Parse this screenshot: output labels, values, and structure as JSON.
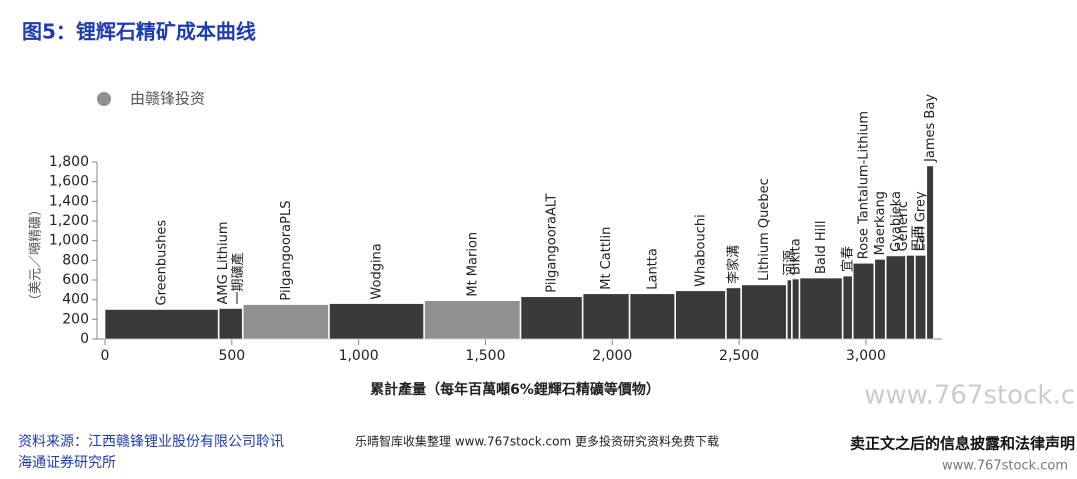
{
  "chart_data": {
    "type": "cost_curve",
    "title": "图5：锂辉石精矿成本曲线",
    "y_label": "（美元／噸精礦）",
    "x_label": "累計產量（每年百萬噸6%鋰輝石精礦等價物）",
    "legend": {
      "label": "由赣锋投资",
      "color": "#8f9092"
    },
    "labels": [
      [
        "Greenbushes"
      ],
      [
        "AMG Lithium",
        "一期礦產"
      ],
      [
        "PilgangooraPLS"
      ],
      [
        "Wodgina"
      ],
      [
        "Mt Marion"
      ],
      [
        "PilgangooraALT"
      ],
      [
        "Mt Cattlin"
      ],
      [
        "Lantta"
      ],
      [
        "Whabouchi"
      ],
      [
        "李家溝"
      ],
      [
        "Lithium Quebec"
      ],
      [
        "河源"
      ],
      [
        "Bikita"
      ],
      [
        "Bald Hill"
      ],
      [
        "宜春"
      ],
      [
        "Rose Tantalum-Lithium"
      ],
      [
        "Maerkang"
      ],
      [
        "Gyabjeka"
      ],
      [
        "Generic",
        "巴西"
      ],
      [
        "Earl Grey"
      ],
      [
        "James Bay"
      ]
    ],
    "x_start": [
      0,
      450,
      545,
      885,
      1260,
      1640,
      1885,
      2070,
      2250,
      2450,
      2510,
      2690,
      2710,
      2740,
      2910,
      2950,
      3035,
      3080,
      3160,
      3195,
      3240
    ],
    "x_end": [
      450,
      545,
      885,
      1260,
      1640,
      1885,
      2070,
      2250,
      2450,
      2510,
      2690,
      2710,
      2740,
      2910,
      2950,
      3035,
      3080,
      3160,
      3195,
      3240,
      3270
    ],
    "values": [
      300,
      310,
      350,
      360,
      390,
      430,
      460,
      460,
      490,
      520,
      550,
      600,
      610,
      620,
      640,
      770,
      810,
      845,
      850,
      850,
      1760
    ],
    "colors": [
      "#3a3a3c",
      "#3a3a3c",
      "#8f9092",
      "#3a3a3c",
      "#8f9092",
      "#3a3a3c",
      "#3a3a3c",
      "#3a3a3c",
      "#3a3a3c",
      "#3a3a3c",
      "#3a3a3c",
      "#3a3a3c",
      "#3a3a3c",
      "#3a3a3c",
      "#3a3a3c",
      "#3a3a3c",
      "#3a3a3c",
      "#3a3a3c",
      "#3a3a3c",
      "#3a3a3c",
      "#3a3a3c"
    ],
    "xlim": [
      0,
      3300
    ],
    "ylim": [
      0,
      1800
    ],
    "xticks": [
      0,
      500,
      {
        "value": 1000,
        "label": "1,000"
      },
      {
        "value": 1500,
        "label": "1,500"
      },
      {
        "value": 2000,
        "label": "2,000"
      },
      {
        "value": 2500,
        "label": "2,500"
      },
      {
        "value": 3000,
        "label": "3,000"
      }
    ],
    "yticks": [
      0,
      200,
      400,
      600,
      800,
      {
        "value": 1000,
        "label": "1,000"
      },
      {
        "value": 1200,
        "label": "1,200"
      },
      {
        "value": 1400,
        "label": "1,400"
      },
      {
        "value": 1600,
        "label": "1,600"
      },
      {
        "value": 1800,
        "label": "1,800"
      }
    ]
  },
  "footer": {
    "source_line1": "资料来源：江西赣锋锂业股份有限公司聆讯",
    "source_line2": "海通证券研究所",
    "watermark": "乐晴智库收集整理 www.767stock.com 更多投资研究资料免费下载",
    "disclaimer": "卖正文之后的信息披露和法律声明",
    "site": "www.767stock.com",
    "site_big": "www.767stock.c"
  }
}
